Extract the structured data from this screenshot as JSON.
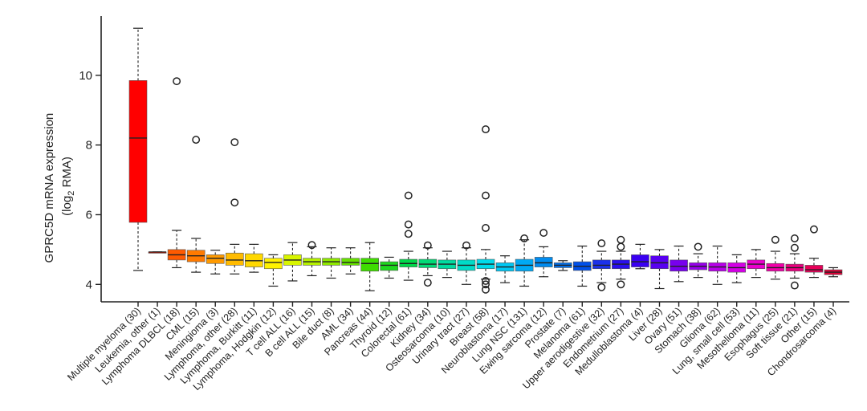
{
  "chart_data": {
    "type": "box",
    "ylabel_line1": "GPRC5D mRNA expression",
    "ylabel_line2_prefix": "(log",
    "ylabel_line2_sub": "2",
    "ylabel_line2_suffix": " RMA)",
    "ylim": [
      3.5,
      11.7
    ],
    "yticks": [
      4,
      6,
      8,
      10
    ],
    "grid": false,
    "categories": [
      "Multiple myeloma (30)",
      "Leukemia, other (1)",
      "Lymphoma DLBCL (18)",
      "CML (15)",
      "Meningioma (3)",
      "Lymphoma, other (28)",
      "Lymphoma, Burkitt (11)",
      "Lymphoma, Hodgkin (12)",
      "T cell ALL (16)",
      "B cell ALL (15)",
      "Bile duct (8)",
      "AML (34)",
      "Pancreas (44)",
      "Thyroid (12)",
      "Colorectal (61)",
      "Kidney (34)",
      "Osteosarcoma (10)",
      "Urinary tract (27)",
      "Breast (58)",
      "Neuroblastoma (17)",
      "Lung NSC (131)",
      "Ewing sarcoma (12)",
      "Prostate (7)",
      "Melanoma (61)",
      "Upper aerodigestive (32)",
      "Endometrium (27)",
      "Medulloblastoma (4)",
      "Liver (28)",
      "Ovary (51)",
      "Stomach (38)",
      "Glioma (62)",
      "Lung, small cell (53)",
      "Mesothelioma (11)",
      "Esophagus (25)",
      "Soft tissue (21)",
      "Other (15)",
      "Chondrosarcoma (4)"
    ],
    "colors": [
      "#ff0000",
      "#ff1a00",
      "#ff5a00",
      "#ff7a00",
      "#ff9a00",
      "#ffbb00",
      "#ffd800",
      "#fff200",
      "#d8f500",
      "#b4f000",
      "#8ee800",
      "#66e000",
      "#3fdc00",
      "#1ed81e",
      "#00d84a",
      "#00da76",
      "#00dba0",
      "#00dcc8",
      "#00daeb",
      "#00c8f5",
      "#00aaf5",
      "#008cf0",
      "#0070ee",
      "#0050ea",
      "#1a30ea",
      "#2a10ee",
      "#3a00f2",
      "#5800f0",
      "#7800ee",
      "#9800ec",
      "#b800ea",
      "#d400e6",
      "#ea00cc",
      "#f000a8",
      "#ec0080",
      "#e60058",
      "#de0038"
    ],
    "boxes": [
      {
        "min": 4.4,
        "q1": 5.78,
        "median": 8.2,
        "q3": 9.85,
        "max": 11.35,
        "outliers": []
      },
      {
        "min": 4.93,
        "q1": 4.93,
        "median": 4.93,
        "q3": 4.93,
        "max": 4.93,
        "outliers": []
      },
      {
        "min": 4.48,
        "q1": 4.7,
        "median": 4.85,
        "q3": 5.0,
        "max": 5.55,
        "outliers": [
          9.83
        ]
      },
      {
        "min": 4.35,
        "q1": 4.65,
        "median": 4.82,
        "q3": 4.98,
        "max": 5.32,
        "outliers": [
          8.15
        ]
      },
      {
        "min": 4.3,
        "q1": 4.6,
        "median": 4.75,
        "q3": 4.85,
        "max": 4.98,
        "outliers": []
      },
      {
        "min": 4.3,
        "q1": 4.55,
        "median": 4.7,
        "q3": 4.9,
        "max": 5.15,
        "outliers": [
          6.35,
          8.08
        ]
      },
      {
        "min": 4.35,
        "q1": 4.5,
        "median": 4.68,
        "q3": 4.88,
        "max": 5.15,
        "outliers": []
      },
      {
        "min": 3.95,
        "q1": 4.45,
        "median": 4.63,
        "q3": 4.75,
        "max": 4.85,
        "outliers": []
      },
      {
        "min": 4.1,
        "q1": 4.55,
        "median": 4.7,
        "q3": 4.85,
        "max": 5.2,
        "outliers": []
      },
      {
        "min": 4.25,
        "q1": 4.55,
        "median": 4.65,
        "q3": 4.75,
        "max": 5.08,
        "outliers": [
          5.13
        ]
      },
      {
        "min": 4.18,
        "q1": 4.55,
        "median": 4.65,
        "q3": 4.75,
        "max": 5.05,
        "outliers": []
      },
      {
        "min": 4.3,
        "q1": 4.55,
        "median": 4.63,
        "q3": 4.75,
        "max": 5.05,
        "outliers": []
      },
      {
        "min": 3.82,
        "q1": 4.38,
        "median": 4.6,
        "q3": 4.75,
        "max": 5.2,
        "outliers": []
      },
      {
        "min": 4.18,
        "q1": 4.4,
        "median": 4.55,
        "q3": 4.65,
        "max": 4.78,
        "outliers": []
      },
      {
        "min": 4.12,
        "q1": 4.5,
        "median": 4.6,
        "q3": 4.72,
        "max": 4.95,
        "outliers": [
          5.45,
          5.72,
          6.55
        ]
      },
      {
        "min": 4.25,
        "q1": 4.48,
        "median": 4.58,
        "q3": 4.72,
        "max": 5.05,
        "outliers": [
          4.05,
          5.12
        ]
      },
      {
        "min": 4.2,
        "q1": 4.45,
        "median": 4.58,
        "q3": 4.7,
        "max": 4.95,
        "outliers": []
      },
      {
        "min": 4.0,
        "q1": 4.4,
        "median": 4.55,
        "q3": 4.7,
        "max": 5.05,
        "outliers": [
          5.12
        ]
      },
      {
        "min": 4.15,
        "q1": 4.45,
        "median": 4.58,
        "q3": 4.72,
        "max": 5.0,
        "outliers": [
          3.85,
          4.0,
          4.1,
          5.62,
          6.55,
          8.45
        ]
      },
      {
        "min": 4.05,
        "q1": 4.38,
        "median": 4.5,
        "q3": 4.62,
        "max": 4.82,
        "outliers": []
      },
      {
        "min": 3.95,
        "q1": 4.38,
        "median": 4.55,
        "q3": 4.72,
        "max": 5.28,
        "outliers": [
          5.32
        ]
      },
      {
        "min": 4.22,
        "q1": 4.5,
        "median": 4.62,
        "q3": 4.78,
        "max": 5.08,
        "outliers": [
          5.48
        ]
      },
      {
        "min": 4.4,
        "q1": 4.48,
        "median": 4.55,
        "q3": 4.62,
        "max": 4.68,
        "outliers": []
      },
      {
        "min": 3.95,
        "q1": 4.4,
        "median": 4.52,
        "q3": 4.65,
        "max": 5.1,
        "outliers": []
      },
      {
        "min": 4.05,
        "q1": 4.45,
        "median": 4.55,
        "q3": 4.7,
        "max": 4.95,
        "outliers": [
          3.92,
          5.18
        ]
      },
      {
        "min": 4.15,
        "q1": 4.45,
        "median": 4.58,
        "q3": 4.7,
        "max": 4.95,
        "outliers": [
          4.0,
          5.08,
          5.28
        ]
      },
      {
        "min": 4.45,
        "q1": 4.5,
        "median": 4.65,
        "q3": 4.85,
        "max": 5.15,
        "outliers": []
      },
      {
        "min": 3.88,
        "q1": 4.45,
        "median": 4.62,
        "q3": 4.82,
        "max": 5.0,
        "outliers": []
      },
      {
        "min": 4.08,
        "q1": 4.38,
        "median": 4.52,
        "q3": 4.7,
        "max": 5.1,
        "outliers": []
      },
      {
        "min": 4.2,
        "q1": 4.42,
        "median": 4.52,
        "q3": 4.62,
        "max": 4.88,
        "outliers": [
          5.08
        ]
      },
      {
        "min": 4.0,
        "q1": 4.38,
        "median": 4.5,
        "q3": 4.62,
        "max": 5.1,
        "outliers": []
      },
      {
        "min": 4.05,
        "q1": 4.35,
        "median": 4.48,
        "q3": 4.62,
        "max": 4.85,
        "outliers": []
      },
      {
        "min": 4.2,
        "q1": 4.45,
        "median": 4.58,
        "q3": 4.7,
        "max": 5.0,
        "outliers": []
      },
      {
        "min": 4.15,
        "q1": 4.38,
        "median": 4.48,
        "q3": 4.6,
        "max": 4.95,
        "outliers": [
          5.28
        ]
      },
      {
        "min": 4.18,
        "q1": 4.38,
        "median": 4.48,
        "q3": 4.58,
        "max": 4.88,
        "outliers": [
          3.97,
          5.05,
          5.32
        ]
      },
      {
        "min": 4.2,
        "q1": 4.35,
        "median": 4.42,
        "q3": 4.55,
        "max": 4.75,
        "outliers": [
          5.58
        ]
      },
      {
        "min": 4.22,
        "q1": 4.28,
        "median": 4.35,
        "q3": 4.42,
        "max": 4.48,
        "outliers": []
      }
    ]
  }
}
